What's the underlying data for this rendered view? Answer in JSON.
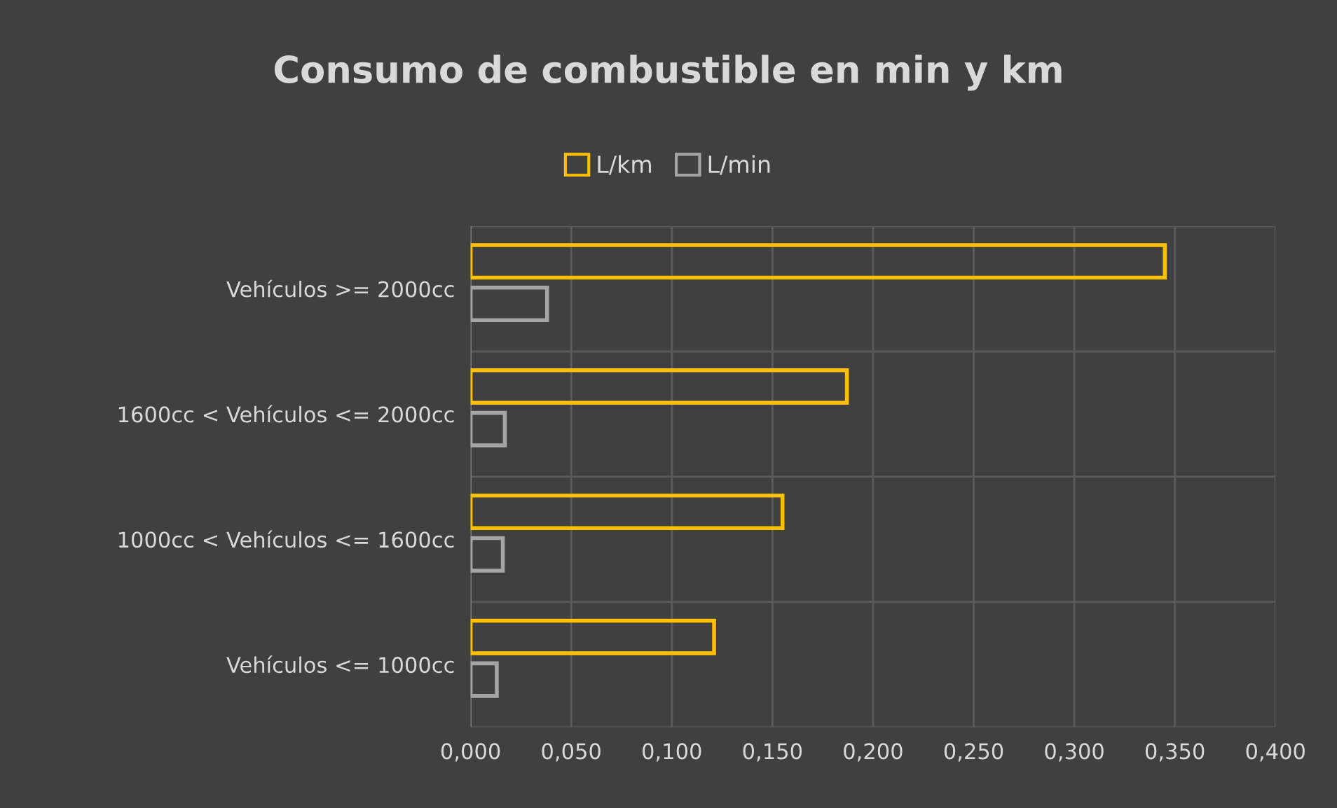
{
  "chart_data": {
    "type": "bar",
    "orientation": "horizontal",
    "title": "Consumo de combustible en min y km",
    "categories": [
      "Vehículos >= 2000cc",
      "1600cc < Vehículos <= 2000cc",
      "1000cc < Vehículos <= 1600cc",
      "Vehículos <= 1000cc"
    ],
    "series": [
      {
        "name": "L/km",
        "color": "#ffc000",
        "values": [
          0.345,
          0.187,
          0.155,
          0.121
        ]
      },
      {
        "name": "L/min",
        "color": "#a5a5a5",
        "values": [
          0.038,
          0.017,
          0.016,
          0.013
        ]
      }
    ],
    "xlim": [
      0,
      0.4
    ],
    "xticks": [
      {
        "value": 0,
        "label": "0,000"
      },
      {
        "value": 0.05,
        "label": "0,050"
      },
      {
        "value": 0.1,
        "label": "0,100"
      },
      {
        "value": 0.15,
        "label": "0,150"
      },
      {
        "value": 0.2,
        "label": "0,200"
      },
      {
        "value": 0.25,
        "label": "0,250"
      },
      {
        "value": 0.3,
        "label": "0,300"
      },
      {
        "value": 0.35,
        "label": "0,350"
      },
      {
        "value": 0.4,
        "label": "0,400"
      }
    ],
    "grid": true,
    "legend": "top"
  }
}
